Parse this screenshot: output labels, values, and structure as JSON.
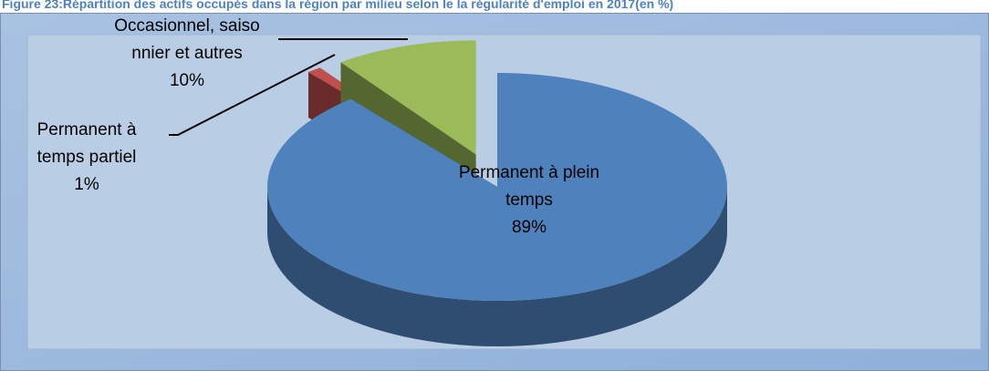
{
  "chart_data": {
    "type": "pie3d",
    "title": "Figure 23:Répartition des actifs occupés dans la région  par milieu selon le la régularité d'emploi en 2017(en %)",
    "categories": [
      [
        "Permanent à plein",
        "temps"
      ],
      [
        "Permanent à",
        "temps partiel"
      ],
      [
        "Occasionnel, saiso",
        "nnier et autres"
      ]
    ],
    "values": [
      89,
      1,
      10
    ],
    "value_labels": [
      "89%",
      "1%",
      "10%"
    ],
    "colors": [
      "#4f81bd",
      "#c0504d",
      "#9bbb59"
    ],
    "start_angle": 0,
    "direction": "clockwise"
  }
}
